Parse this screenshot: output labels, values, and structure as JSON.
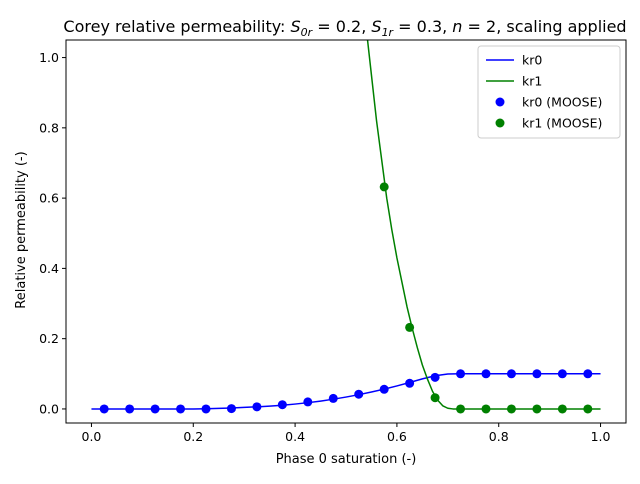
{
  "chart_data": {
    "type": "line",
    "title": "Corey relative permeability: $S_{0r} = 0.2, S_{1r} = 0.3, n = 2$, scaling applied",
    "title_parts": {
      "prefix": "Corey relative permeability: ",
      "s0r_symbol": "S",
      "s0r_sub": "0r",
      "s0r_value": " = 0.2, ",
      "s1r_symbol": "S",
      "s1r_sub": "1r",
      "s1r_value": " = 0.3, ",
      "n_symbol": "n",
      "n_value": " = 2, scaling applied"
    },
    "xlabel": "Phase 0 saturation (-)",
    "ylabel": "Relative permeability (-)",
    "xlim": [
      -0.05,
      1.05
    ],
    "ylim": [
      -0.04,
      1.05
    ],
    "x_ticks": [
      {
        "value": 0.0,
        "label": "0.0"
      },
      {
        "value": 0.2,
        "label": "0.2"
      },
      {
        "value": 0.4,
        "label": "0.4"
      },
      {
        "value": 0.6,
        "label": "0.6"
      },
      {
        "value": 0.8,
        "label": "0.8"
      },
      {
        "value": 1.0,
        "label": "1.0"
      }
    ],
    "y_ticks": [
      {
        "value": 0.0,
        "label": "0.0"
      },
      {
        "value": 0.2,
        "label": "0.2"
      },
      {
        "value": 0.4,
        "label": "0.4"
      },
      {
        "value": 0.6,
        "label": "0.6"
      },
      {
        "value": 0.8,
        "label": "0.8"
      },
      {
        "value": 1.0,
        "label": "1.0"
      }
    ],
    "grid": false,
    "legend_position": "top-right",
    "legend": [
      {
        "label": "kr0",
        "style": "line",
        "color": "#0000ff"
      },
      {
        "label": "kr1",
        "style": "line",
        "color": "#008000"
      },
      {
        "label": "kr0 (MOOSE)",
        "style": "marker",
        "color": "#0000ff"
      },
      {
        "label": "kr1 (MOOSE)",
        "style": "marker",
        "color": "#008000"
      }
    ],
    "series": [
      {
        "name": "kr0",
        "style": "line",
        "color": "#0000ff",
        "x": [
          0.0,
          0.05,
          0.1,
          0.15,
          0.2,
          0.225,
          0.25,
          0.275,
          0.3,
          0.325,
          0.35,
          0.375,
          0.4,
          0.425,
          0.45,
          0.475,
          0.5,
          0.525,
          0.55,
          0.575,
          0.6,
          0.625,
          0.65,
          0.675,
          0.7,
          0.725,
          0.75,
          0.8,
          0.85,
          0.9,
          0.95,
          1.0
        ],
        "y": [
          0.0,
          0.0,
          0.0,
          0.0,
          0.0,
          0.0005,
          0.0016,
          0.0028,
          0.0043,
          0.006,
          0.0081,
          0.0107,
          0.0139,
          0.0178,
          0.0224,
          0.0278,
          0.0338,
          0.0406,
          0.0482,
          0.0565,
          0.0655,
          0.0753,
          0.0855,
          0.0945,
          0.0995,
          0.1,
          0.1,
          0.1,
          0.1,
          0.1,
          0.1,
          0.1
        ]
      },
      {
        "name": "kr1",
        "style": "line",
        "color": "#008000",
        "x": [
          0.54,
          0.55,
          0.56,
          0.57,
          0.58,
          0.59,
          0.6,
          0.61,
          0.62,
          0.63,
          0.64,
          0.65,
          0.66,
          0.67,
          0.68,
          0.69,
          0.7,
          0.71,
          0.72,
          0.73,
          0.75,
          0.8,
          0.85,
          0.9,
          0.95,
          1.0
        ],
        "y": [
          1.08,
          0.95,
          0.82,
          0.71,
          0.6,
          0.51,
          0.43,
          0.36,
          0.29,
          0.23,
          0.175,
          0.125,
          0.085,
          0.05,
          0.025,
          0.009,
          0.002,
          0.0,
          0.0,
          0.0,
          0.0,
          0.0,
          0.0,
          0.0,
          0.0,
          0.0
        ]
      },
      {
        "name": "kr0 (MOOSE)",
        "style": "marker",
        "color": "#0000ff",
        "x": [
          0.025,
          0.075,
          0.125,
          0.175,
          0.225,
          0.275,
          0.325,
          0.375,
          0.425,
          0.475,
          0.525,
          0.575,
          0.625,
          0.675,
          0.725,
          0.775,
          0.825,
          0.875,
          0.925,
          0.975
        ],
        "y": [
          0.0,
          0.0,
          0.0,
          0.0,
          0.0,
          0.001,
          0.006,
          0.012,
          0.02,
          0.03,
          0.042,
          0.056,
          0.073,
          0.09,
          0.1,
          0.1,
          0.1,
          0.1,
          0.1,
          0.1
        ]
      },
      {
        "name": "kr1 (MOOSE)",
        "style": "marker",
        "color": "#008000",
        "x": [
          0.575,
          0.625,
          0.675,
          0.725,
          0.775,
          0.825,
          0.875,
          0.925,
          0.975
        ],
        "y": [
          0.632,
          0.232,
          0.032,
          0.0,
          0.0,
          0.0,
          0.0,
          0.0,
          0.0
        ]
      }
    ]
  }
}
